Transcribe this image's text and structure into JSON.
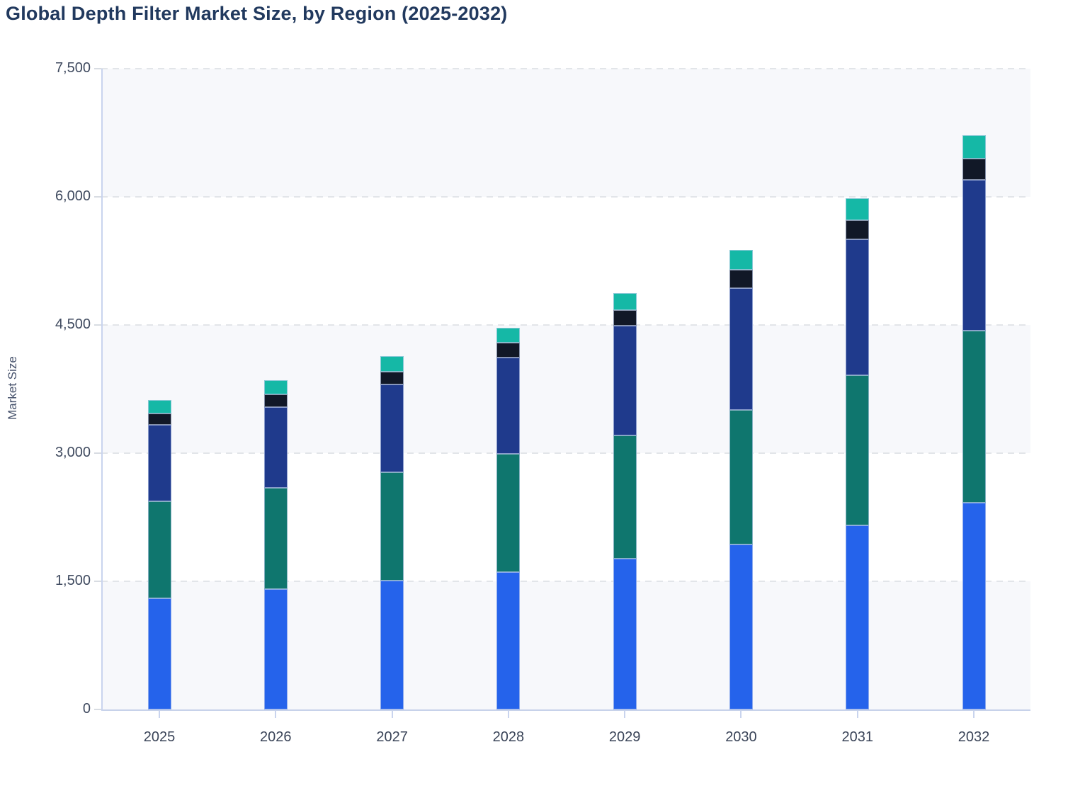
{
  "title": "Global Depth Filter Market Size, by Region (2025-2032)",
  "y_axis": {
    "label": "Market Size",
    "tick_labels": [
      "0",
      "1,500",
      "3,000",
      "4,500",
      "6,000",
      "7,500"
    ]
  },
  "x_axis": {
    "tick_labels": [
      "2025",
      "2026",
      "2027",
      "2028",
      "2029",
      "2030",
      "2031",
      "2032"
    ]
  },
  "chart_data": {
    "type": "bar",
    "stacked": true,
    "title": "Global Depth Filter Market Size, by Region (2025-2032)",
    "xlabel": "",
    "ylabel": "Market Size",
    "ylim": [
      0,
      7500
    ],
    "yticks": [
      0,
      1500,
      3000,
      4500,
      6000,
      7500
    ],
    "grid": "horizontal-dashed",
    "legend": "none",
    "plot_background": "alternating-bands",
    "categories": [
      "2025",
      "2026",
      "2027",
      "2028",
      "2029",
      "2030",
      "2031",
      "2032"
    ],
    "series": [
      {
        "name": "series-1-bottom",
        "color": "#2563eb",
        "values": [
          1305,
          1405,
          1510,
          1610,
          1765,
          1935,
          2155,
          2420
        ]
      },
      {
        "name": "series-2",
        "color": "#0f766e",
        "values": [
          1135,
          1190,
          1265,
          1380,
          1440,
          1570,
          1755,
          2015
        ]
      },
      {
        "name": "series-3",
        "color": "#1f3a8c",
        "values": [
          890,
          940,
          1025,
          1125,
          1285,
          1430,
          1590,
          1760
        ]
      },
      {
        "name": "series-4",
        "color": "#111827",
        "values": [
          135,
          150,
          150,
          175,
          180,
          215,
          230,
          250
        ]
      },
      {
        "name": "series-5-top",
        "color": "#15b8a6",
        "values": [
          155,
          165,
          185,
          175,
          205,
          230,
          250,
          275
        ]
      }
    ],
    "totals": [
      3620,
      3850,
      4135,
      4465,
      4875,
      5380,
      5980,
      6720
    ],
    "colors": {
      "band_light": "#f7f8fb",
      "gridline": "#e2e5e9",
      "axis_line": "#c7d2ea",
      "title_text": "#21395e",
      "tick_text": "#3f4a5f"
    }
  }
}
